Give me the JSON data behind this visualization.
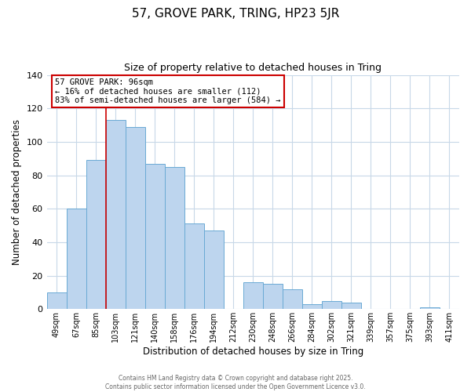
{
  "title1": "57, GROVE PARK, TRING, HP23 5JR",
  "title2": "Size of property relative to detached houses in Tring",
  "xlabel": "Distribution of detached houses by size in Tring",
  "ylabel": "Number of detached properties",
  "bar_color": "#bdd5ee",
  "bar_edge_color": "#6aaad4",
  "bins": [
    "49sqm",
    "67sqm",
    "85sqm",
    "103sqm",
    "121sqm",
    "140sqm",
    "158sqm",
    "176sqm",
    "194sqm",
    "212sqm",
    "230sqm",
    "248sqm",
    "266sqm",
    "284sqm",
    "302sqm",
    "321sqm",
    "339sqm",
    "357sqm",
    "375sqm",
    "393sqm",
    "411sqm"
  ],
  "values": [
    10,
    60,
    89,
    113,
    109,
    87,
    85,
    51,
    47,
    0,
    16,
    15,
    12,
    3,
    5,
    4,
    0,
    0,
    0,
    1,
    0
  ],
  "ylim": [
    0,
    140
  ],
  "yticks": [
    0,
    20,
    40,
    60,
    80,
    100,
    120,
    140
  ],
  "vline_x_index": 2,
  "vline_color": "#cc0000",
  "annotation_title": "57 GROVE PARK: 96sqm",
  "annotation_line1": "← 16% of detached houses are smaller (112)",
  "annotation_line2": "83% of semi-detached houses are larger (584) →",
  "annotation_box_color": "#ffffff",
  "annotation_box_edge": "#cc0000",
  "footer1": "Contains HM Land Registry data © Crown copyright and database right 2025.",
  "footer2": "Contains public sector information licensed under the Open Government Licence v3.0.",
  "background_color": "#ffffff",
  "grid_color": "#c8d8e8"
}
